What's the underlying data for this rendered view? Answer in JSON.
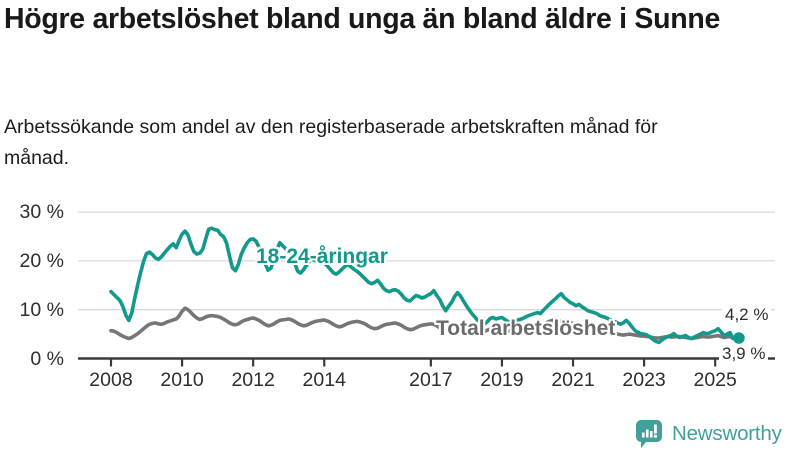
{
  "header": {
    "title": "Högre arbetslöshet bland unga än bland äldre i Sunne",
    "subtitle": "Arbetssökande som andel av den registerbaserade arbetskraften månad för månad."
  },
  "chart_data": {
    "type": "line",
    "title": "Högre arbetslöshet bland unga än bland äldre i Sunne",
    "x_unit": "month",
    "x_start": 2008.0,
    "x_end": 2025.667,
    "ylim": [
      0,
      32
    ],
    "grid": "horizontal",
    "y_axis": {
      "values": [
        30,
        20,
        10,
        0
      ],
      "labels": [
        "30 %",
        "20 %",
        "10 %",
        "0 %"
      ],
      "gridline_values": [
        30,
        20,
        10
      ]
    },
    "x_axis": {
      "tick_years": [
        2008,
        2010,
        2012,
        2014,
        2017,
        2019,
        2021,
        2023,
        2025
      ],
      "labels": [
        "2008",
        "2010",
        "2012",
        "2014",
        "2017",
        "2019",
        "2021",
        "2023",
        "2025"
      ]
    },
    "style": {
      "grid_color": "#dadada",
      "axis_color": "#3a3a3a",
      "label_color": "#2e2e2e"
    },
    "series": [
      {
        "name": "18-24-åringar",
        "color": "#13998c",
        "end_label": "4,2 %",
        "end_value": 4.2,
        "values": [
          13.7,
          13.1,
          12.5,
          11.9,
          10.7,
          8.9,
          7.8,
          9.3,
          12.3,
          15.1,
          17.6,
          19.9,
          21.5,
          21.8,
          21.3,
          20.6,
          20.3,
          20.8,
          21.6,
          22.3,
          23.0,
          23.5,
          22.7,
          24.2,
          25.5,
          26.1,
          25.3,
          23.4,
          21.9,
          21.4,
          21.6,
          22.4,
          24.6,
          26.5,
          26.7,
          26.4,
          26.3,
          25.4,
          25.0,
          23.7,
          21.0,
          18.6,
          18.0,
          19.3,
          21.4,
          22.7,
          23.7,
          24.4,
          24.5,
          24.0,
          22.8,
          21.3,
          19.5,
          18.1,
          18.5,
          20.3,
          22.4,
          23.7,
          23.1,
          22.5,
          21.7,
          21.0,
          19.7,
          17.9,
          17.5,
          18.2,
          19.1,
          19.9,
          20.4,
          20.0,
          19.6,
          19.9,
          19.5,
          19.0,
          18.3,
          17.6,
          17.3,
          17.7,
          18.3,
          18.9,
          19.2,
          18.8,
          18.3,
          17.9,
          17.4,
          16.8,
          16.2,
          15.6,
          15.3,
          15.6,
          16.0,
          15.3,
          14.4,
          13.9,
          13.7,
          14.0,
          14.1,
          13.8,
          13.2,
          12.4,
          11.9,
          11.8,
          12.4,
          12.9,
          12.7,
          12.4,
          12.6,
          13.0,
          13.3,
          13.9,
          12.9,
          12.1,
          10.8,
          9.8,
          10.7,
          11.5,
          12.7,
          13.5,
          12.8,
          11.8,
          10.8,
          9.9,
          9.1,
          8.4,
          7.7,
          7.1,
          7.0,
          7.5,
          8.2,
          8.4,
          8.1,
          8.3,
          8.4,
          8.0,
          7.6,
          7.3,
          7.5,
          7.8,
          8.0,
          8.2,
          8.5,
          8.8,
          9.0,
          9.2,
          9.4,
          9.2,
          9.9,
          10.5,
          11.1,
          11.7,
          12.2,
          12.8,
          13.3,
          12.5,
          12.0,
          11.5,
          11.2,
          10.8,
          11.1,
          10.6,
          10.2,
          9.8,
          9.6,
          9.4,
          9.2,
          8.8,
          8.6,
          8.4,
          8.1,
          7.8,
          7.6,
          7.3,
          7.0,
          7.3,
          7.8,
          7.2,
          6.4,
          5.7,
          5.3,
          5.1,
          5.0,
          4.8,
          4.4,
          3.9,
          3.5,
          3.3,
          3.8,
          4.2,
          4.5,
          4.7,
          5.1,
          4.6,
          4.3,
          4.5,
          4.7,
          4.3,
          4.1,
          4.4,
          4.7,
          5.0,
          5.3,
          5.1,
          5.2,
          5.5,
          5.7,
          6.1,
          5.4,
          4.7,
          5.0,
          5.3,
          4.1,
          4.3,
          4.2
        ]
      },
      {
        "name": "Total arbetslöshet",
        "color": "#767676",
        "end_label": "3,9 %",
        "end_value": 3.9,
        "values": [
          5.7,
          5.6,
          5.3,
          4.9,
          4.6,
          4.3,
          4.1,
          4.3,
          4.7,
          5.1,
          5.6,
          6.1,
          6.6,
          7.0,
          7.2,
          7.3,
          7.1,
          7.0,
          7.2,
          7.5,
          7.7,
          7.9,
          8.1,
          8.7,
          9.7,
          10.3,
          10.0,
          9.4,
          8.8,
          8.3,
          8.0,
          8.2,
          8.5,
          8.7,
          8.8,
          8.7,
          8.6,
          8.4,
          8.1,
          7.7,
          7.3,
          7.0,
          6.9,
          7.1,
          7.5,
          7.8,
          8.0,
          8.2,
          8.3,
          8.1,
          7.8,
          7.4,
          7.0,
          6.7,
          6.8,
          7.1,
          7.5,
          7.8,
          7.9,
          8.0,
          8.1,
          7.9,
          7.6,
          7.2,
          6.9,
          6.7,
          6.8,
          7.1,
          7.4,
          7.6,
          7.7,
          7.8,
          7.9,
          7.7,
          7.4,
          7.0,
          6.7,
          6.5,
          6.6,
          6.9,
          7.2,
          7.4,
          7.5,
          7.6,
          7.5,
          7.3,
          7.0,
          6.6,
          6.3,
          6.1,
          6.2,
          6.5,
          6.8,
          7.0,
          7.1,
          7.2,
          7.3,
          7.1,
          6.8,
          6.4,
          6.1,
          5.9,
          6.0,
          6.3,
          6.6,
          6.8,
          6.9,
          7.0,
          7.1,
          7.0,
          6.7,
          6.3,
          6.0,
          5.8,
          5.9,
          6.2,
          6.5,
          6.7,
          6.8,
          6.9,
          6.8,
          6.6,
          6.3,
          5.9,
          5.6,
          5.4,
          5.5,
          5.8,
          6.0,
          6.2,
          6.3,
          6.4,
          6.3,
          6.1,
          5.8,
          5.5,
          5.3,
          5.2,
          5.3,
          5.6,
          5.8,
          6.0,
          6.1,
          6.2,
          6.3,
          6.5,
          6.9,
          7.3,
          7.6,
          7.8,
          7.9,
          7.8,
          7.7,
          7.5,
          7.4,
          7.3,
          7.2,
          7.1,
          6.9,
          6.6,
          6.4,
          6.2,
          6.1,
          6.0,
          5.9,
          5.8,
          5.7,
          5.6,
          5.5,
          5.4,
          5.2,
          5.0,
          4.9,
          4.8,
          4.9,
          5.0,
          4.9,
          4.8,
          4.7,
          4.6,
          4.6,
          4.5,
          4.4,
          4.3,
          4.2,
          4.2,
          4.3,
          4.4,
          4.5,
          4.4,
          4.4,
          4.5,
          4.5,
          4.4,
          4.3,
          4.2,
          4.1,
          4.2,
          4.3,
          4.4,
          4.5,
          4.4,
          4.4,
          4.5,
          4.6,
          4.7,
          4.5,
          4.3,
          4.4,
          4.5,
          4.2,
          4.0,
          3.9
        ]
      }
    ]
  },
  "footer": {
    "brand": "Newsworthy",
    "brand_color": "#42a09b",
    "logo_icon": "speech-bubble-bar-chart"
  }
}
